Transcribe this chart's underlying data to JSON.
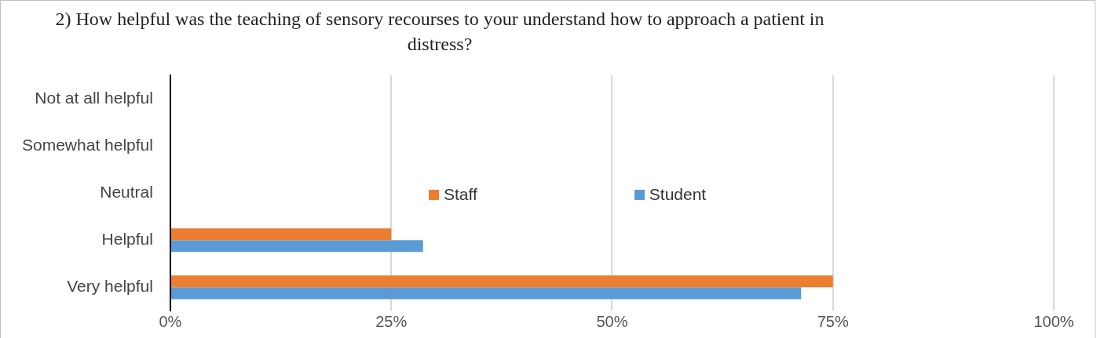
{
  "chart_data": {
    "type": "bar",
    "orientation": "horizontal",
    "title": "2) How helpful was the teaching of sensory recourses to your understand how to approach a patient in distress?",
    "categories": [
      "Not at all helpful",
      "Somewhat helpful",
      "Neutral",
      "Helpful",
      "Very helpful"
    ],
    "series": [
      {
        "name": "Staff",
        "color": "#ed7d31",
        "values": [
          0,
          0,
          0,
          25,
          75
        ]
      },
      {
        "name": "Student",
        "color": "#5b9bd5",
        "values": [
          0,
          0,
          0,
          28.6,
          71.4
        ]
      }
    ],
    "xlim": [
      0,
      100
    ],
    "xticks": [
      {
        "value": 0,
        "label": "0%"
      },
      {
        "value": 25,
        "label": "25%"
      },
      {
        "value": 50,
        "label": "50%"
      },
      {
        "value": 75,
        "label": "75%"
      },
      {
        "value": 100,
        "label": "100%"
      }
    ],
    "grid": "x",
    "legend": "center"
  }
}
